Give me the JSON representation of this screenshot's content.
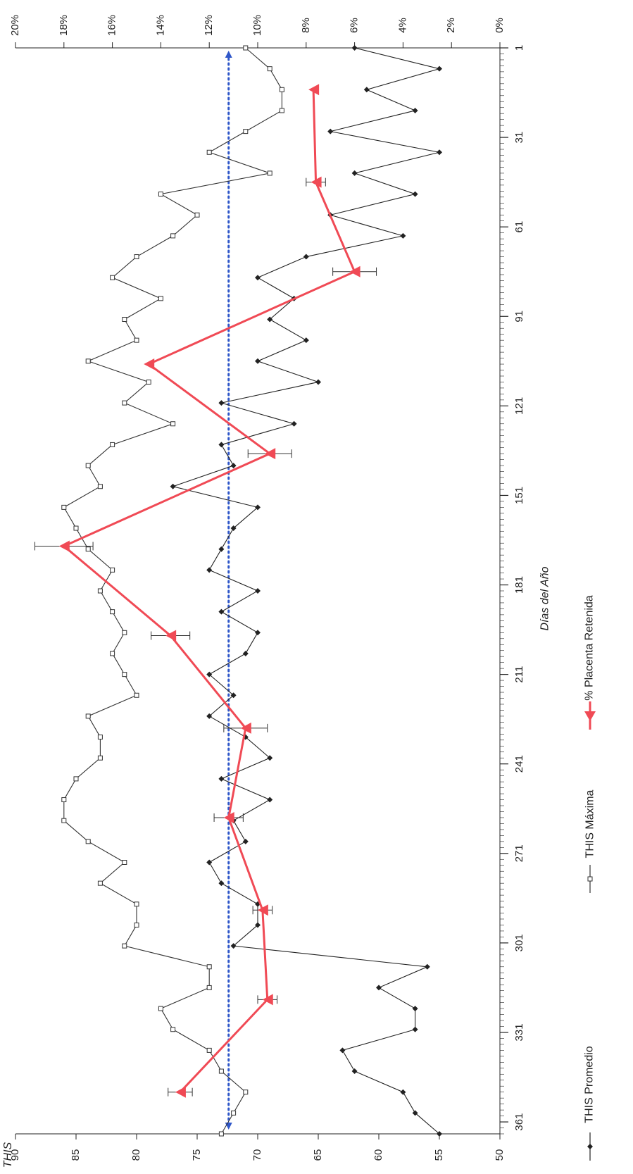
{
  "chart_data": {
    "type": "line",
    "xlabel": "Días del Año",
    "ylabel": "THIS",
    "x_ticks": [
      1,
      31,
      61,
      91,
      121,
      151,
      181,
      211,
      241,
      271,
      301,
      331,
      361
    ],
    "xlim": [
      1,
      365
    ],
    "ylim": [
      50,
      90
    ],
    "y_ticks": [
      50,
      55,
      60,
      65,
      70,
      75,
      80,
      85,
      90
    ],
    "y2lim": [
      0,
      20
    ],
    "y2_ticks": [
      "0%",
      "2%",
      "4%",
      "6%",
      "8%",
      "10%",
      "12%",
      "14%",
      "16%",
      "18%",
      "20%"
    ],
    "legend_position": "bottom",
    "colors": {
      "promedio": "#222222",
      "maxima": "#333333",
      "placenta": "#f04a55",
      "reference": "#2f57c9",
      "axis": "#222222"
    },
    "series": [
      {
        "name": "THIS Promedio",
        "marker": "diamond-filled",
        "axis": "left",
        "x": [
          1,
          8,
          15,
          22,
          29,
          36,
          43,
          50,
          57,
          64,
          71,
          78,
          85,
          92,
          99,
          106,
          113,
          120,
          127,
          134,
          141,
          148,
          155,
          162,
          169,
          176,
          183,
          190,
          197,
          204,
          211,
          218,
          225,
          232,
          239,
          246,
          253,
          260,
          267,
          274,
          281,
          288,
          295,
          302,
          309,
          316,
          323,
          330,
          337,
          344,
          351,
          358,
          365
        ],
        "values": [
          62,
          55,
          61,
          57,
          64,
          55,
          62,
          57,
          64,
          58,
          66,
          70,
          67,
          69,
          66,
          70,
          65,
          73,
          67,
          73,
          72,
          77,
          70,
          72,
          73,
          74,
          70,
          73,
          70,
          71,
          74,
          72,
          74,
          71,
          69,
          73,
          69,
          72,
          71,
          74,
          73,
          70,
          70,
          72,
          56,
          60,
          57,
          57,
          63,
          62,
          58,
          57,
          55
        ]
      },
      {
        "name": "THIS Máxima",
        "marker": "square-open",
        "axis": "left",
        "x": [
          1,
          8,
          15,
          22,
          29,
          36,
          43,
          50,
          57,
          64,
          71,
          78,
          85,
          92,
          99,
          106,
          113,
          120,
          127,
          134,
          141,
          148,
          155,
          162,
          169,
          176,
          183,
          190,
          197,
          204,
          211,
          218,
          225,
          232,
          239,
          246,
          253,
          260,
          267,
          274,
          281,
          288,
          295,
          302,
          309,
          316,
          323,
          330,
          337,
          344,
          351,
          358,
          365
        ],
        "values": [
          71,
          69,
          68,
          68,
          71,
          74,
          69,
          78,
          75,
          77,
          80,
          82,
          78,
          81,
          80,
          84,
          79,
          81,
          77,
          82,
          84,
          83,
          86,
          85,
          84,
          82,
          83,
          82,
          81,
          82,
          81,
          80,
          84,
          83,
          83,
          85,
          86,
          86,
          84,
          81,
          83,
          80,
          80,
          81,
          74,
          74,
          78,
          77,
          74,
          73,
          71,
          72,
          73
        ]
      },
      {
        "name": "% Placenta Retenida",
        "marker": "triangle",
        "axis": "right",
        "x": [
          15,
          46,
          76,
          107,
          137,
          168,
          198,
          229,
          259,
          290,
          320,
          351
        ],
        "values": [
          7.7,
          7.6,
          6.0,
          14.5,
          9.5,
          18.0,
          13.6,
          10.5,
          11.2,
          9.8,
          9.6,
          13.2
        ],
        "error": [
          0,
          0.4,
          0.9,
          0,
          0.9,
          1.2,
          0.8,
          0.9,
          0.6,
          0.4,
          0.4,
          0.5
        ]
      }
    ],
    "reference_line": {
      "value": 72.4,
      "axis": "left",
      "style": "dotted-arrow"
    }
  }
}
